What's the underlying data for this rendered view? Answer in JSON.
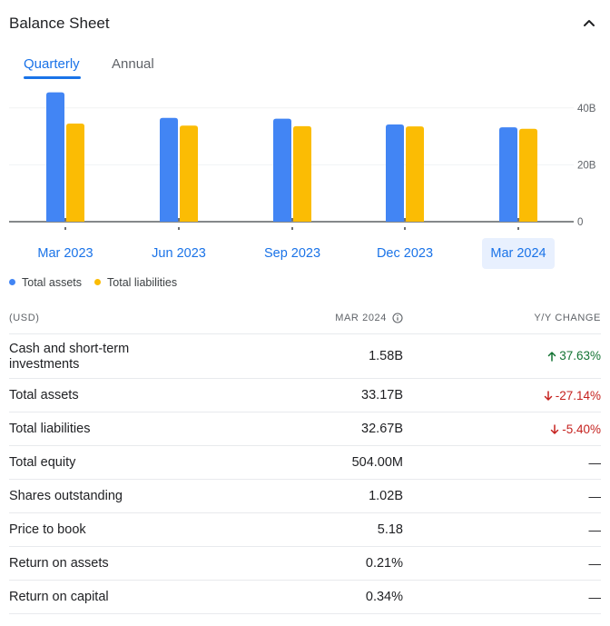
{
  "header": {
    "title": "Balance Sheet"
  },
  "tabs": [
    {
      "label": "Quarterly",
      "active": true
    },
    {
      "label": "Annual",
      "active": false
    }
  ],
  "chart_data": {
    "type": "bar",
    "categories": [
      "Mar 2023",
      "Jun 2023",
      "Sep 2023",
      "Dec 2023",
      "Mar 2024"
    ],
    "selected_category": "Mar 2024",
    "series": [
      {
        "name": "Total assets",
        "color": "#4285f4",
        "values": [
          45.5,
          36.5,
          36.2,
          34.2,
          33.17
        ]
      },
      {
        "name": "Total liabilities",
        "color": "#fbbc04",
        "values": [
          34.5,
          33.8,
          33.6,
          33.5,
          32.67
        ]
      }
    ],
    "y_ticks": [
      {
        "value": 40,
        "label": "40B"
      },
      {
        "value": 20,
        "label": "20B"
      },
      {
        "value": 0,
        "label": "0"
      }
    ],
    "ylim": [
      0,
      46
    ],
    "grid": true,
    "legend_position": "bottom-left"
  },
  "table": {
    "columns": {
      "label": "(USD)",
      "value": "MAR 2024",
      "change": "Y/Y CHANGE"
    },
    "rows": [
      {
        "label": "Cash and short-term investments",
        "value": "1.58B",
        "change": "37.63%",
        "dir": "up"
      },
      {
        "label": "Total assets",
        "value": "33.17B",
        "change": "-27.14%",
        "dir": "down"
      },
      {
        "label": "Total liabilities",
        "value": "32.67B",
        "change": "-5.40%",
        "dir": "down"
      },
      {
        "label": "Total equity",
        "value": "504.00M",
        "change": "—",
        "dir": "none"
      },
      {
        "label": "Shares outstanding",
        "value": "1.02B",
        "change": "—",
        "dir": "none"
      },
      {
        "label": "Price to book",
        "value": "5.18",
        "change": "—",
        "dir": "none"
      },
      {
        "label": "Return on assets",
        "value": "0.21%",
        "change": "—",
        "dir": "none"
      },
      {
        "label": "Return on capital",
        "value": "0.34%",
        "change": "—",
        "dir": "none"
      }
    ]
  }
}
